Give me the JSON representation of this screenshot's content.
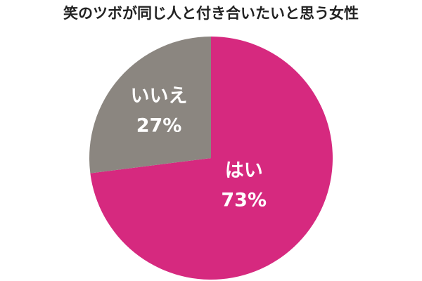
{
  "chart_data": {
    "type": "pie",
    "title": "笑のツボが同じ人と付き合いたいと思う女性",
    "categories": [
      "はい",
      "いいえ"
    ],
    "values": [
      73,
      27
    ],
    "value_labels": [
      "73%",
      "27%"
    ],
    "colors": [
      "#d6297f",
      "#8b8680"
    ]
  }
}
